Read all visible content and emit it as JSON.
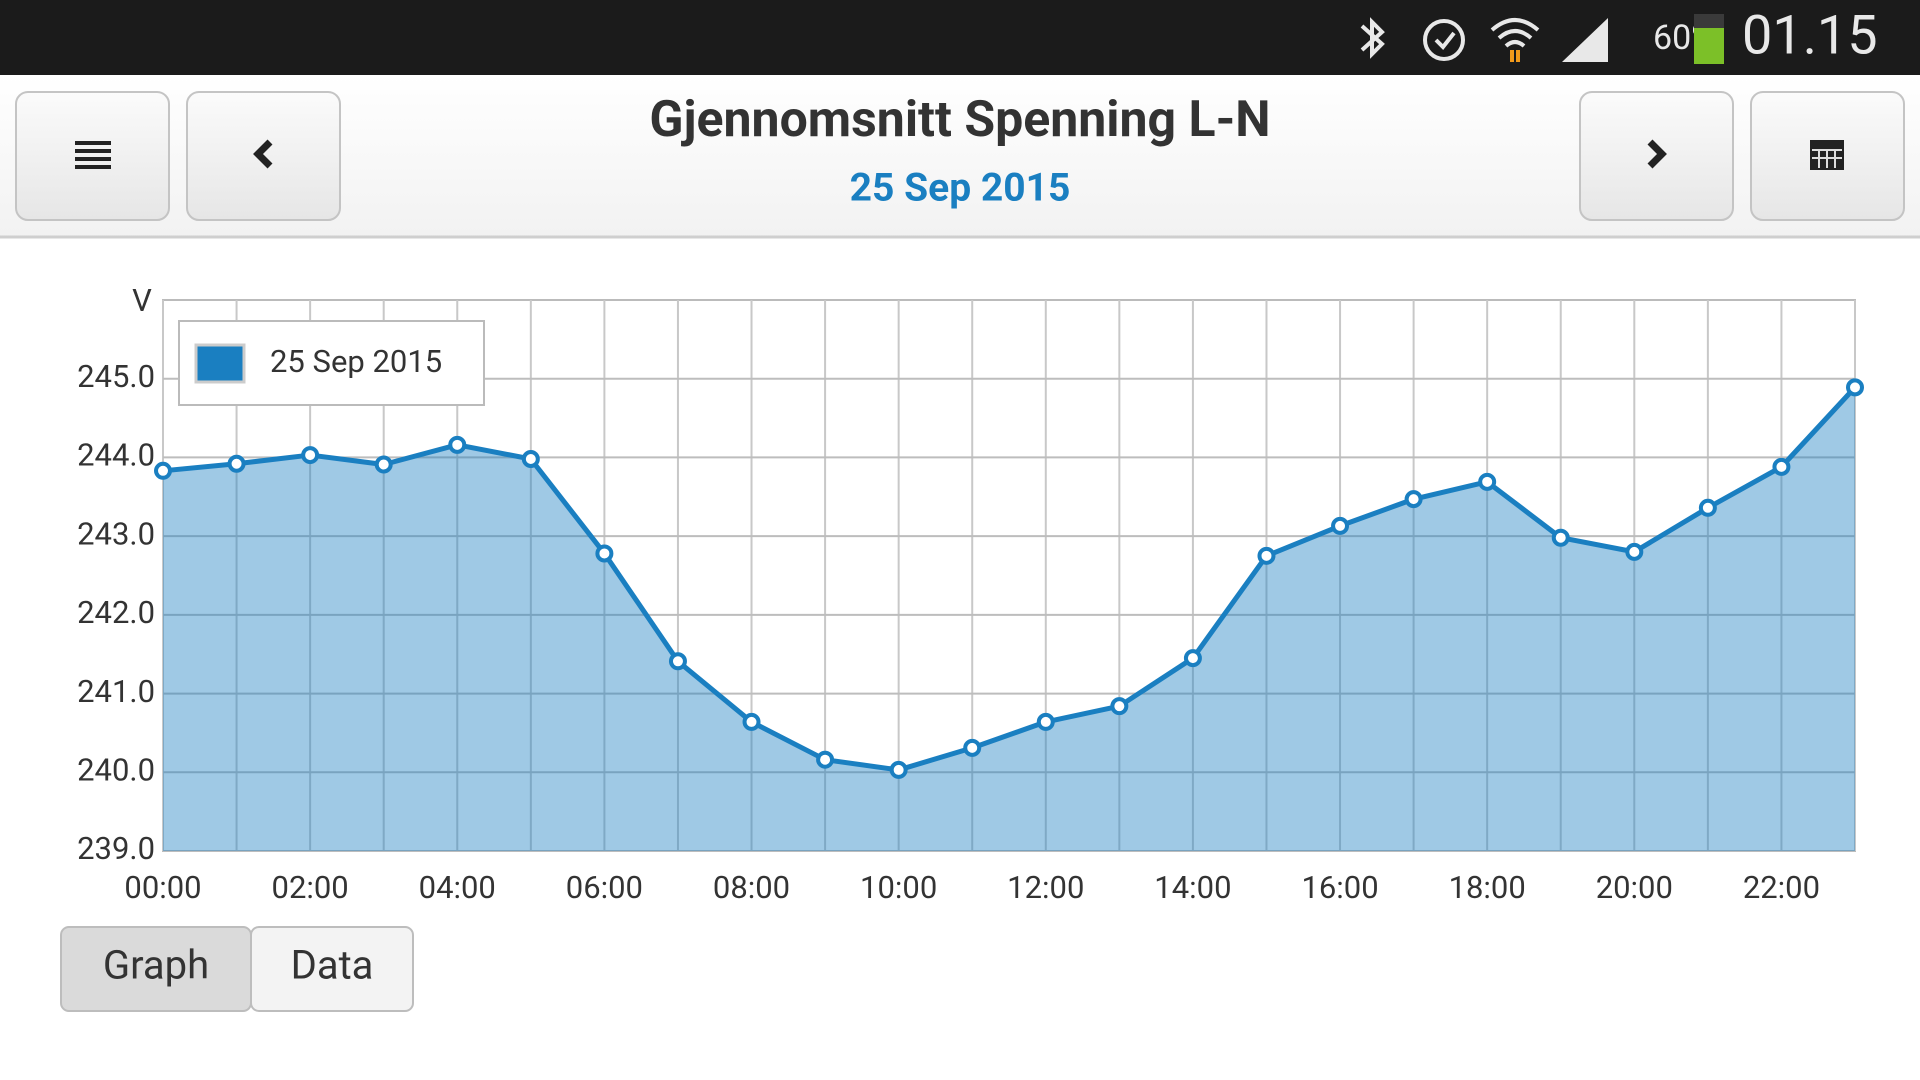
{
  "status_bar": {
    "battery": "60%",
    "time": "01.15"
  },
  "chart_data": {
    "type": "area",
    "title": "Gjennomsnitt Spenning L-N",
    "subtitle": "25 Sep 2015",
    "y_label": "V",
    "categories": [
      "00:00",
      null,
      "02:00",
      null,
      "04:00",
      null,
      "06:00",
      null,
      "08:00",
      null,
      "10:00",
      null,
      "12:00",
      null,
      "14:00",
      null,
      "16:00",
      null,
      "18:00",
      null,
      "20:00",
      null,
      "22:00",
      null
    ],
    "series": [
      {
        "name": "25 Sep 2015",
        "color": "#1a7fc1",
        "values": [
          243.83,
          243.92,
          244.03,
          243.91,
          244.16,
          243.98,
          242.78,
          241.41,
          240.64,
          240.16,
          240.03,
          240.31,
          240.64,
          240.84,
          241.45,
          242.75,
          243.13,
          243.47,
          243.69,
          242.98,
          242.8,
          243.36,
          243.88,
          244.89
        ]
      }
    ],
    "ylim": [
      239,
      246
    ],
    "yticks": [
      {
        "value": 239,
        "label": "239.0"
      },
      {
        "value": 240,
        "label": "240.0"
      },
      {
        "value": 241,
        "label": "241.0"
      },
      {
        "value": 242,
        "label": "242.0"
      },
      {
        "value": 243,
        "label": "243.0"
      },
      {
        "value": 244,
        "label": "244.0"
      },
      {
        "value": 245,
        "label": "245.0"
      }
    ],
    "grid": true,
    "legend": "upper-left"
  },
  "tabs": [
    "Graph",
    "Data"
  ]
}
